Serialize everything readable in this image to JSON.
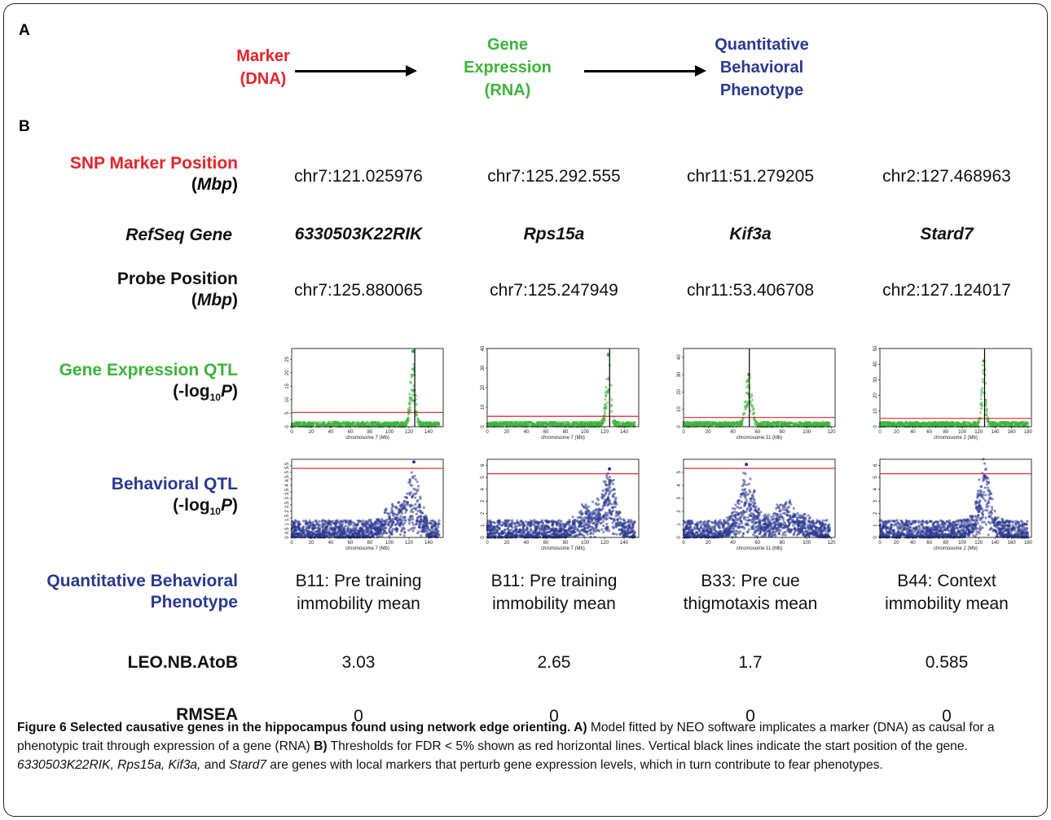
{
  "panel_a": {
    "label": "A",
    "marker_line1": "Marker",
    "marker_line2": "(DNA)",
    "gene_line1": "Gene",
    "gene_line2": "Expression",
    "gene_line3": "(RNA)",
    "pheno_line1": "Quantitative",
    "pheno_line2": "Behavioral",
    "pheno_line3": "Phenotype",
    "colors": {
      "marker": "#e8222a",
      "gene": "#3cb43a",
      "pheno": "#2b3990"
    }
  },
  "panel_b": {
    "label": "B"
  },
  "rows": {
    "snp_line1": "SNP Marker Position",
    "snp_line2_open": "(",
    "snp_line2_unit": "Mbp",
    "snp_line2_close": ")",
    "refseq": "RefSeq Gene",
    "probe_line1": "Probe Position",
    "probe_line2_open": "(",
    "probe_line2_unit": "Mbp",
    "probe_line2_close": ")",
    "geqtl_line1": "Gene Expression QTL",
    "bqtl_line1": "Behavioral QTL",
    "log_pre": "(-log",
    "log_sub": "10",
    "log_p": "P",
    "log_post": ")",
    "qbp_line1": "Quantitative Behavioral",
    "qbp_line2": "Phenotype",
    "leo": "LEO.NB.AtoB",
    "rmsea": "RMSEA"
  },
  "columns": [
    {
      "snp": "chr7:121.025976",
      "gene": "6330503K22RIK",
      "probe": "chr7:125.880065",
      "pheno1": "B11: Pre training",
      "pheno2": "immobility mean",
      "leo": "3.03",
      "rmsea": "0"
    },
    {
      "snp": "chr7:125.292.555",
      "gene": "Rps15a",
      "probe": "chr7:125.247949",
      "pheno1": "B11: Pre training",
      "pheno2": "immobility mean",
      "leo": "2.65",
      "rmsea": "0"
    },
    {
      "snp": "chr11:51.279205",
      "gene": "Kif3a",
      "probe": "chr11:53.406708",
      "pheno1": "B33: Pre cue",
      "pheno2": "thigmotaxis mean",
      "leo": "1.7",
      "rmsea": "0"
    },
    {
      "snp": "chr2:127.468963",
      "gene": "Stard7",
      "probe": "chr2:127.124017",
      "pheno1": "B44: Context",
      "pheno2": "immobility mean",
      "leo": "0.585",
      "rmsea": "0"
    }
  ],
  "chart_data": [
    {
      "type": "scatter",
      "group": "expression",
      "xlabel": "chromosome 7 (Mb)",
      "xticks": [
        0,
        20,
        40,
        60,
        80,
        100,
        120,
        140
      ],
      "xlim": [
        0,
        155
      ],
      "yticks": [
        0,
        5,
        10,
        15,
        20,
        25
      ],
      "ylim": [
        0,
        29
      ],
      "threshold": 5.3,
      "gene_start": 125.9,
      "peak": {
        "x": 124,
        "y": 28
      },
      "color": "#3cb43a"
    },
    {
      "type": "scatter",
      "group": "expression",
      "xlabel": "chromosome 7 (Mb)",
      "xticks": [
        0,
        20,
        40,
        60,
        80,
        100,
        120,
        140
      ],
      "xlim": [
        0,
        155
      ],
      "yticks": [
        0,
        10,
        20,
        30,
        40
      ],
      "ylim": [
        0,
        40
      ],
      "threshold": 5.3,
      "gene_start": 125.2,
      "peak": {
        "x": 124,
        "y": 37
      },
      "color": "#3cb43a"
    },
    {
      "type": "scatter",
      "group": "expression",
      "xlabel": "chromosome 11 (Mb)",
      "xticks": [
        0,
        20,
        40,
        60,
        80,
        100,
        120
      ],
      "xlim": [
        0,
        123
      ],
      "yticks": [
        0,
        10,
        20,
        30,
        40
      ],
      "ylim": [
        0,
        45
      ],
      "threshold": 5.3,
      "gene_start": 53.4,
      "peak": {
        "x": 53,
        "y": 30
      },
      "color": "#3cb43a"
    },
    {
      "type": "scatter",
      "group": "expression",
      "xlabel": "chromosome 2 (Mb)",
      "xticks": [
        0,
        20,
        40,
        60,
        80,
        100,
        120,
        140,
        160,
        180
      ],
      "xlim": [
        0,
        184
      ],
      "yticks": [
        0,
        10,
        20,
        30,
        40,
        50
      ],
      "ylim": [
        0,
        50
      ],
      "threshold": 5.3,
      "gene_start": 127.1,
      "peak": {
        "x": 126,
        "y": 42
      },
      "color": "#3cb43a"
    },
    {
      "type": "scatter",
      "group": "behavioral",
      "xlabel": "chromosome 7 (Mb)",
      "xticks": [
        0,
        20,
        40,
        60,
        80,
        100,
        120,
        140
      ],
      "xlim": [
        0,
        155
      ],
      "yticks": [
        0,
        0.5,
        1,
        1.5,
        2,
        2.5,
        3,
        3.5,
        4,
        4.5,
        5,
        5.5
      ],
      "ylim": [
        0,
        6
      ],
      "threshold": 5.3,
      "peak": {
        "x": 125,
        "y": 5.8
      },
      "color": "#2b3990"
    },
    {
      "type": "scatter",
      "group": "behavioral",
      "xlabel": "chromosome 7 (Mb)",
      "xticks": [
        0,
        20,
        40,
        60,
        80,
        100,
        120,
        140
      ],
      "xlim": [
        0,
        155
      ],
      "yticks": [
        0,
        1,
        2,
        3,
        4,
        5,
        6
      ],
      "ylim": [
        0,
        6.5
      ],
      "threshold": 5.3,
      "peak": {
        "x": 125,
        "y": 5.7
      },
      "color": "#2b3990"
    },
    {
      "type": "scatter",
      "group": "behavioral",
      "xlabel": "chromosome 11 (Mb)",
      "xticks": [
        0,
        20,
        40,
        60,
        80,
        100,
        120
      ],
      "xlim": [
        0,
        123
      ],
      "yticks": [
        0,
        1,
        2,
        3,
        4,
        5
      ],
      "ylim": [
        0,
        6
      ],
      "threshold": 5.3,
      "peak": {
        "x": 51,
        "y": 5.6
      },
      "color": "#2b3990"
    },
    {
      "type": "scatter",
      "group": "behavioral",
      "xlabel": "chromosome 2 (Mb)",
      "xticks": [
        0,
        20,
        40,
        60,
        80,
        100,
        120,
        140,
        160,
        180
      ],
      "xlim": [
        0,
        184
      ],
      "yticks": [
        0,
        1,
        2,
        3,
        4,
        5,
        6
      ],
      "ylim": [
        0,
        6.5
      ],
      "threshold": 5.3,
      "peak": {
        "x": 127,
        "y": 5.1
      },
      "color": "#2b3990"
    }
  ],
  "caption": {
    "title": "Figure 6 Selected causative genes in the hippocampus found using network edge orienting",
    "a_label": "A)",
    "a_text": " Model fitted by NEO software implicates a marker (DNA) as causal for a phenotypic trait through expression of a gene (RNA) ",
    "b_label": "B)",
    "b_text": " Thresholds for FDR < 5% shown as red horizontal lines. Vertical black lines indicate the start position of the gene. ",
    "genes_italic": "6330503K22RIK, Rps15a, Kif3a,",
    "and_text": " and ",
    "stard7": "Stard7",
    "tail": " are genes with local markers that perturb gene expression levels, which in turn contribute to fear phenotypes."
  }
}
